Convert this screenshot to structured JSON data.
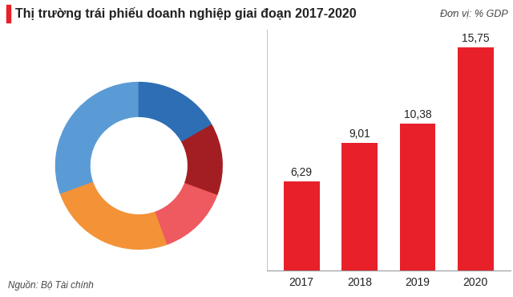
{
  "chart_data": {
    "type": "bar",
    "title": "Thị trường trái phiếu doanh nghiệp giai đoạn 2017-2020",
    "subtitle": "Đơn vị: % GDP",
    "source": "Nguồn: Bộ Tài chính",
    "categories": [
      "2017",
      "2018",
      "2019",
      "2020"
    ],
    "values": [
      6.29,
      9.01,
      10.38,
      15.75
    ],
    "value_labels": [
      "6,29",
      "9,01",
      "10,38",
      "15,75"
    ],
    "color": "#e8202a",
    "ylim": [
      0,
      17
    ],
    "yticks": [],
    "grid": false,
    "data_labels": true,
    "tick_labels": "x"
  }
}
